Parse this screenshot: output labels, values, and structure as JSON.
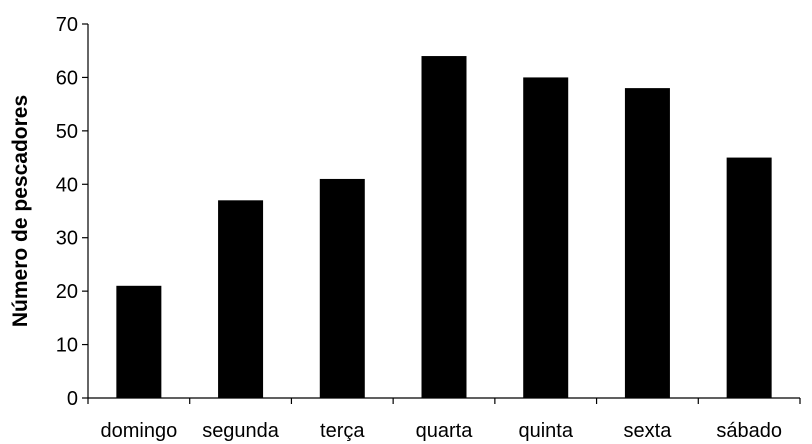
{
  "chart_data": {
    "type": "bar",
    "title": "",
    "xlabel": "",
    "ylabel": "Número de pescadores",
    "categories": [
      "domingo",
      "segunda",
      "terça",
      "quarta",
      "quinta",
      "sexta",
      "sábado"
    ],
    "values": [
      21,
      37,
      41,
      64,
      60,
      58,
      45
    ],
    "ylim": [
      0,
      70
    ],
    "yticks": [
      0,
      10,
      20,
      30,
      40,
      50,
      60,
      70
    ],
    "grid": false,
    "legend": "none",
    "bar_color": "#000000"
  }
}
